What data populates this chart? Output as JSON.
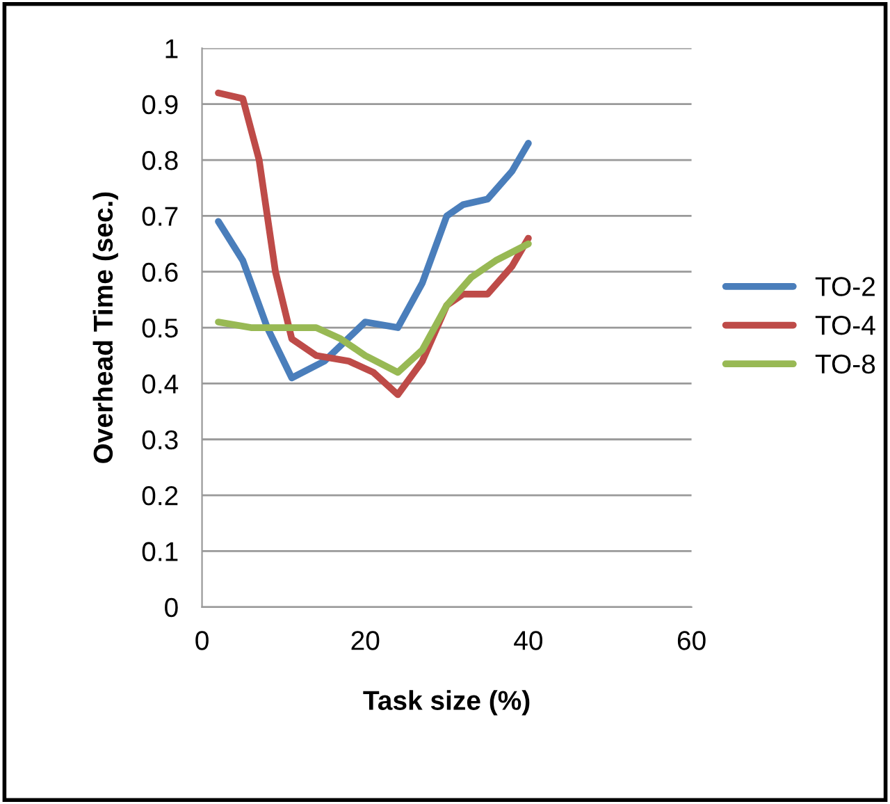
{
  "chart_data": {
    "type": "line",
    "xlabel": "Task size (%)",
    "ylabel": "Overhead Time (sec.)",
    "xlim": [
      0,
      60
    ],
    "xticks": [
      0,
      20,
      40,
      60
    ],
    "ylim": [
      0,
      1
    ],
    "yticks": [
      0,
      0.1,
      0.2,
      0.3,
      0.4,
      0.5,
      0.6,
      0.7,
      0.8,
      0.9,
      1
    ],
    "grid": "y",
    "legend": "right",
    "marker": "none",
    "line_style": "solid",
    "series": [
      {
        "name": "TO-2",
        "color": "#4a7ebb",
        "x": [
          2,
          5,
          8,
          11,
          15,
          20,
          24,
          27,
          30,
          32,
          35,
          38,
          40
        ],
        "values": [
          0.69,
          0.62,
          0.5,
          0.41,
          0.44,
          0.51,
          0.5,
          0.58,
          0.7,
          0.72,
          0.73,
          0.78,
          0.83
        ]
      },
      {
        "name": "TO-4",
        "color": "#be4b48",
        "x": [
          2,
          5,
          7,
          9,
          11,
          14,
          18,
          21,
          24,
          27,
          30,
          32,
          35,
          38,
          40
        ],
        "values": [
          0.92,
          0.91,
          0.8,
          0.6,
          0.48,
          0.45,
          0.44,
          0.42,
          0.38,
          0.44,
          0.54,
          0.56,
          0.56,
          0.61,
          0.66
        ]
      },
      {
        "name": "TO-8",
        "color": "#98b954",
        "x": [
          2,
          6,
          10,
          14,
          17,
          20,
          24,
          27,
          30,
          33,
          36,
          40
        ],
        "values": [
          0.51,
          0.5,
          0.5,
          0.5,
          0.48,
          0.45,
          0.42,
          0.46,
          0.54,
          0.59,
          0.62,
          0.65
        ]
      }
    ]
  }
}
